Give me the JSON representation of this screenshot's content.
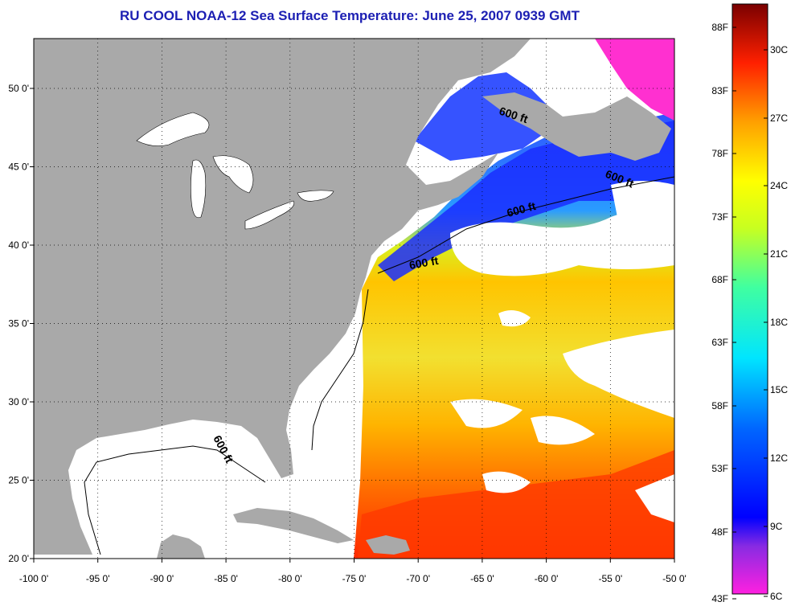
{
  "title": "RU COOL  NOAA-12  Sea Surface Temperature:  June 25, 2007 0939 GMT",
  "map": {
    "lon_labels": [
      "-100 0'",
      "-95 0'",
      "-90 0'",
      "-85 0'",
      "-80 0'",
      "-75 0'",
      "-70 0'",
      "-65 0'",
      "-60 0'",
      "-55 0'",
      "-50 0'"
    ],
    "lat_labels": [
      "50 0'",
      "45 0'",
      "40 0'",
      "35 0'",
      "30 0'",
      "25 0'",
      "20 0'"
    ],
    "contour_labels": [
      "600 ft",
      "600 ft",
      "600 ft",
      "600 ft",
      "600 ft"
    ],
    "colors": {
      "land": "#a9a9a9",
      "cloud": "#ffffff",
      "frame": "#000000"
    }
  },
  "colorbar": {
    "fahrenheit": [
      "88F",
      "83F",
      "78F",
      "73F",
      "68F",
      "63F",
      "58F",
      "53F",
      "48F",
      "43F"
    ],
    "celsius": [
      "30C",
      "27C",
      "24C",
      "21C",
      "18C",
      "15C",
      "12C",
      "9C",
      "6C"
    ]
  }
}
